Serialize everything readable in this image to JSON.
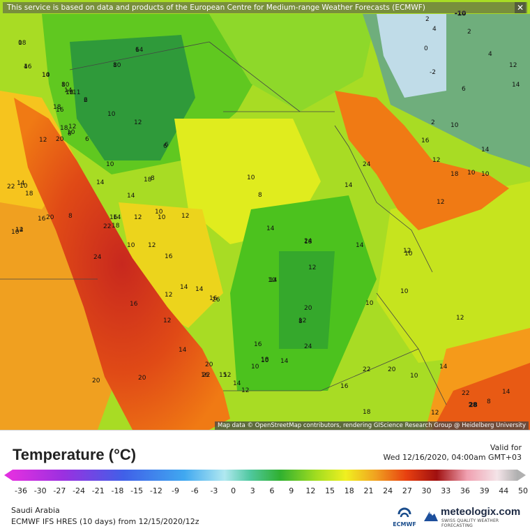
{
  "banner_text": "This service is based on data and products of the European Centre for Medium-range Weather Forecasts (ECMWF)",
  "close_symbol": "✕",
  "attribution_text": "Map data © OpenStreetMap contributors, rendering GIScience Research Group @ Heidelberg University",
  "map_labels": [
    "18",
    "16",
    "14",
    "16",
    "6",
    "10",
    "8",
    "6",
    "16",
    "18",
    "14",
    "11",
    "18",
    "10",
    "12",
    "8",
    "6",
    "10",
    "12",
    "6",
    "14",
    "8",
    "6",
    "18",
    "20",
    "22",
    "10",
    "12",
    "14",
    "16",
    "20",
    "8",
    "10",
    "12",
    "10",
    "12",
    "14",
    "16",
    "18",
    "10",
    "14",
    "12",
    "14",
    "16",
    "22",
    "18",
    "10",
    "12",
    "16",
    "20",
    "20",
    "24",
    "14",
    "16",
    "12",
    "10",
    "12",
    "14",
    "14",
    "20",
    "22",
    "15",
    "16",
    "14",
    "12",
    "12",
    "10",
    "10",
    "14",
    "12",
    "16",
    "18",
    "24",
    "20",
    "14",
    "26",
    "10",
    "8",
    "14",
    "24",
    "12",
    "10",
    "8",
    "16",
    "18",
    "22",
    "20",
    "10",
    "14",
    "22",
    "28",
    "12",
    "8",
    "14",
    "10",
    "10",
    "12",
    "10",
    "12",
    "14",
    "14",
    "18",
    "24",
    "16",
    "12",
    "18",
    "10",
    "12",
    "10",
    "14",
    "2",
    "4",
    "0",
    "-2",
    "-10",
    "2",
    "4",
    "12",
    "14",
    "6",
    "10",
    "2",
    "0",
    "4",
    "10",
    "12",
    "14",
    "8",
    "10",
    "2"
  ],
  "colors": {
    "sea_warm": "#f06a10",
    "sea_hot": "#c8281e",
    "land_green": "#55c81e",
    "land_yellow": "#dcea1c",
    "cold": "#6fa88c"
  },
  "legend": {
    "title": "Temperature (°C)",
    "valid_label": "Valid for",
    "valid_time": "Wed 12/16/2020, 04:00am GMT+03",
    "ticks": [
      "-36",
      "-30",
      "-27",
      "-24",
      "-21",
      "-18",
      "-15",
      "-12",
      "-9",
      "-6",
      "-3",
      "0",
      "3",
      "6",
      "9",
      "12",
      "15",
      "18",
      "21",
      "24",
      "27",
      "30",
      "33",
      "36",
      "39",
      "44",
      "50"
    ]
  },
  "footer": {
    "region": "Saudi Arabia",
    "model": "ECMWF IFS HRES (10 days) from 12/15/2020/12z",
    "ecmwf_label": "ECMWF",
    "brand_name": "meteologix.com",
    "brand_tagline": "SWISS QUALITY WEATHER FORECASTING"
  }
}
